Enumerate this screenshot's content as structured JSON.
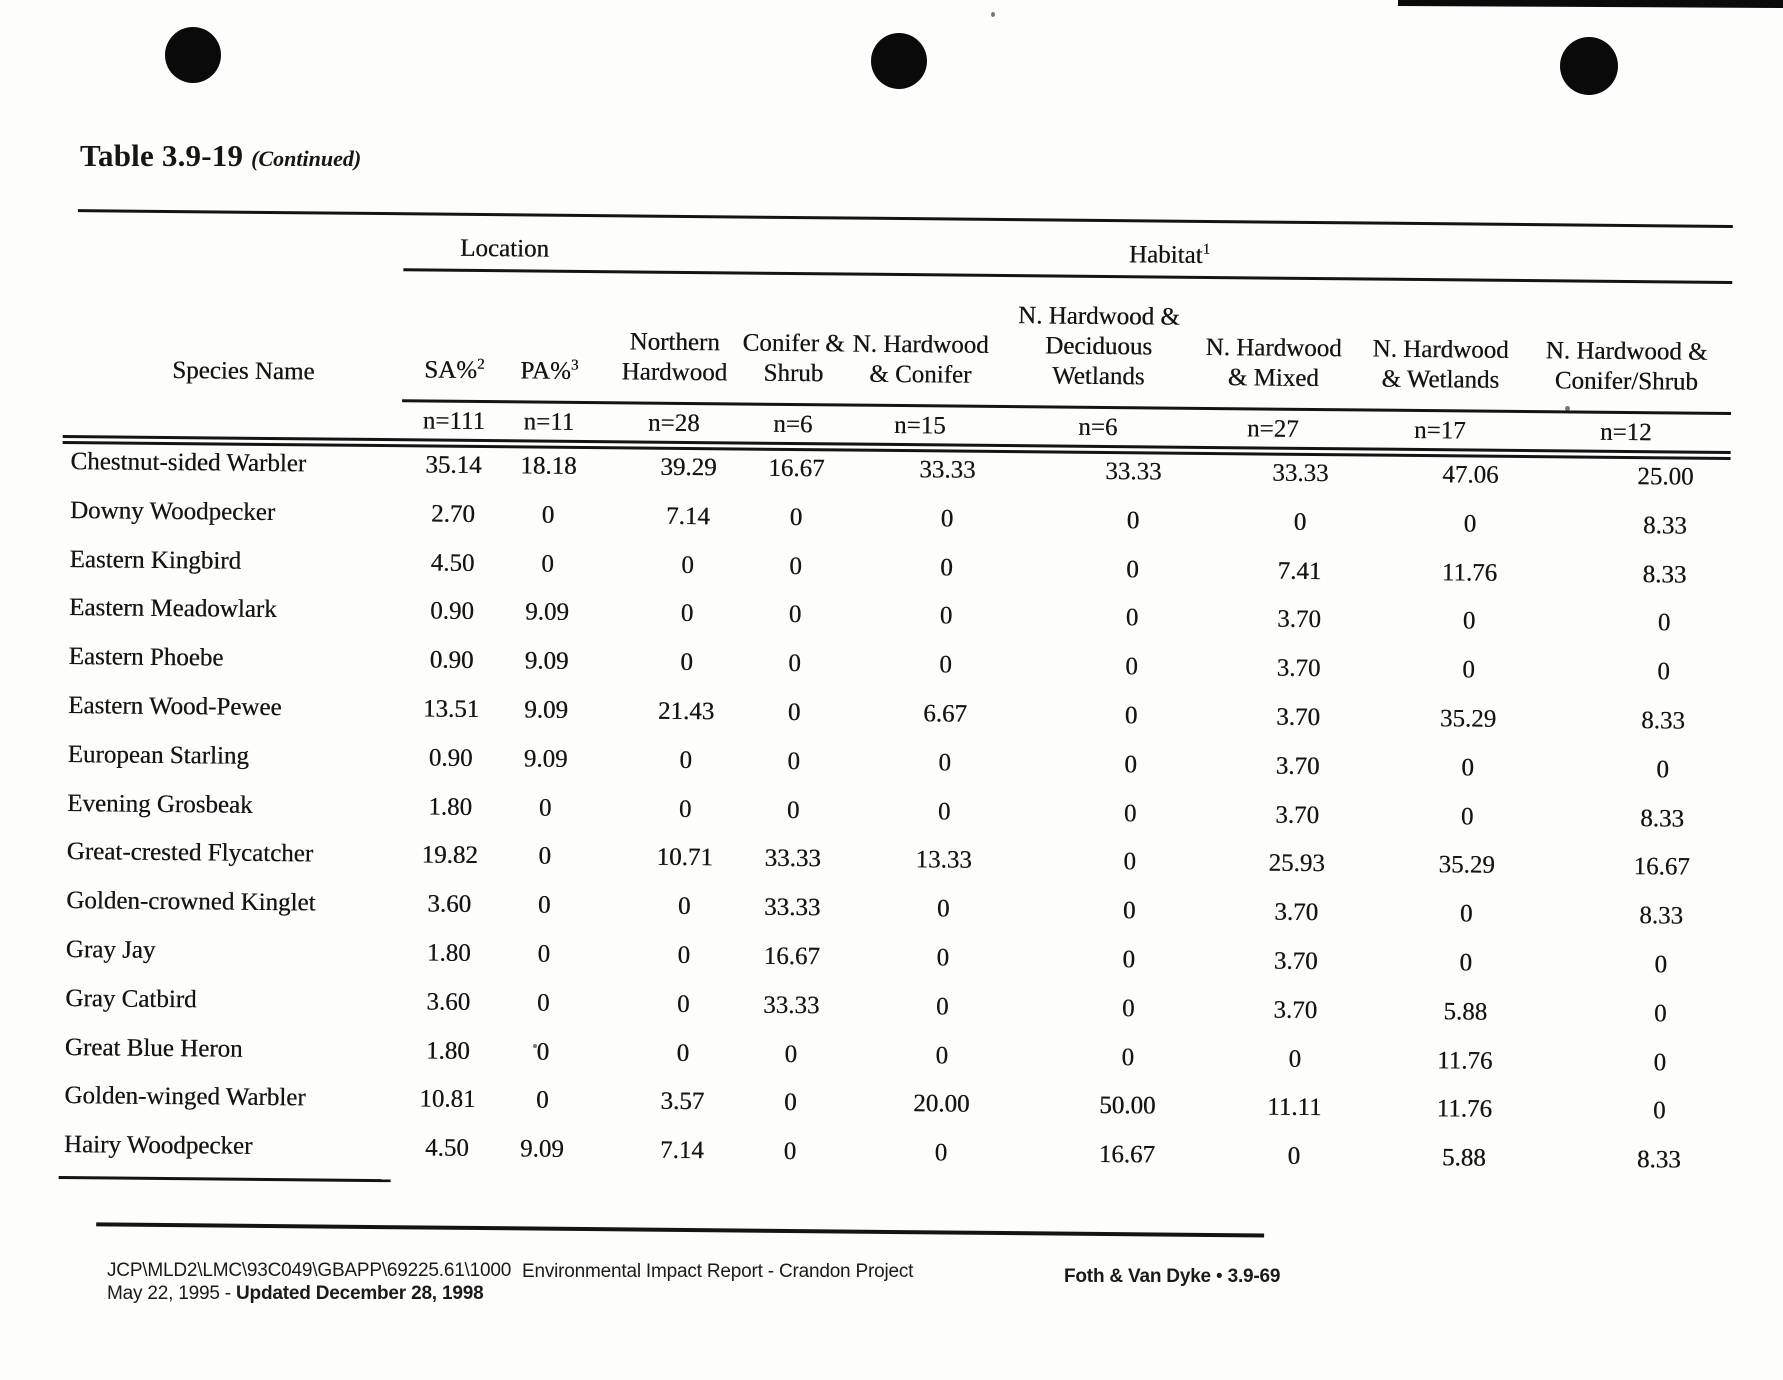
{
  "page": {
    "title": "Table 3.9-19",
    "title_note": "(Continued)"
  },
  "table": {
    "group_headers": [
      {
        "label": "Location",
        "sup": ""
      },
      {
        "label": "Habitat",
        "sup": "1"
      }
    ],
    "species_header": "Species Name",
    "columns": [
      {
        "lines": [
          "SA%"
        ],
        "sup": "2",
        "n": "n=111"
      },
      {
        "lines": [
          "PA%"
        ],
        "sup": "3",
        "n": "n=11"
      },
      {
        "lines": [
          "Northern",
          "Hardwood"
        ],
        "sup": "",
        "n": "n=28"
      },
      {
        "lines": [
          "Conifer &",
          "Shrub"
        ],
        "sup": "",
        "n": "n=6"
      },
      {
        "lines": [
          "N. Hardwood",
          "& Conifer"
        ],
        "sup": "",
        "n": "n=15"
      },
      {
        "lines": [
          "N. Hardwood &",
          "Deciduous",
          "Wetlands"
        ],
        "sup": "",
        "n": "n=6"
      },
      {
        "lines": [
          "N. Hardwood",
          "& Mixed"
        ],
        "sup": "",
        "n": "n=27"
      },
      {
        "lines": [
          "N. Hardwood",
          "& Wetlands"
        ],
        "sup": "",
        "n": "n=17"
      },
      {
        "lines": [
          "N. Hardwood &",
          "Conifer/Shrub"
        ],
        "sup": "",
        "n": "n=12"
      }
    ],
    "rows": [
      {
        "species": "Chestnut-sided Warbler",
        "values": [
          "35.14",
          "18.18",
          "39.29",
          "16.67",
          "33.33",
          "33.33",
          "33.33",
          "47.06",
          "25.00"
        ]
      },
      {
        "species": "Downy Woodpecker",
        "values": [
          "2.70",
          "0",
          "7.14",
          "0",
          "0",
          "0",
          "0",
          "0",
          "8.33"
        ]
      },
      {
        "species": "Eastern Kingbird",
        "values": [
          "4.50",
          "0",
          "0",
          "0",
          "0",
          "0",
          "7.41",
          "11.76",
          "8.33"
        ]
      },
      {
        "species": "Eastern Meadowlark",
        "values": [
          "0.90",
          "9.09",
          "0",
          "0",
          "0",
          "0",
          "3.70",
          "0",
          "0"
        ]
      },
      {
        "species": "Eastern Phoebe",
        "values": [
          "0.90",
          "9.09",
          "0",
          "0",
          "0",
          "0",
          "3.70",
          "0",
          "0"
        ]
      },
      {
        "species": "Eastern Wood-Pewee",
        "values": [
          "13.51",
          "9.09",
          "21.43",
          "0",
          "6.67",
          "0",
          "3.70",
          "35.29",
          "8.33"
        ]
      },
      {
        "species": "European Starling",
        "values": [
          "0.90",
          "9.09",
          "0",
          "0",
          "0",
          "0",
          "3.70",
          "0",
          "0"
        ]
      },
      {
        "species": "Evening Grosbeak",
        "values": [
          "1.80",
          "0",
          "0",
          "0",
          "0",
          "0",
          "3.70",
          "0",
          "8.33"
        ]
      },
      {
        "species": "Great-crested Flycatcher",
        "values": [
          "19.82",
          "0",
          "10.71",
          "33.33",
          "13.33",
          "0",
          "25.93",
          "35.29",
          "16.67"
        ]
      },
      {
        "species": "Golden-crowned Kinglet",
        "values": [
          "3.60",
          "0",
          "0",
          "33.33",
          "0",
          "0",
          "3.70",
          "0",
          "8.33"
        ]
      },
      {
        "species": "Gray Jay",
        "values": [
          "1.80",
          "0",
          "0",
          "16.67",
          "0",
          "0",
          "3.70",
          "0",
          "0"
        ]
      },
      {
        "species": "Gray Catbird",
        "values": [
          "3.60",
          "0",
          "0",
          "33.33",
          "0",
          "0",
          "3.70",
          "5.88",
          "0"
        ]
      },
      {
        "species": "Great Blue Heron",
        "values": [
          "1.80",
          "0",
          "0",
          "0",
          "0",
          "0",
          "0",
          "11.76",
          "0"
        ]
      },
      {
        "species": "Golden-winged Warbler",
        "values": [
          "10.81",
          "0",
          "3.57",
          "0",
          "20.00",
          "50.00",
          "11.11",
          "11.76",
          "0"
        ]
      },
      {
        "species": "Hairy Woodpecker",
        "values": [
          "4.50",
          "9.09",
          "7.14",
          "0",
          "0",
          "16.67",
          "0",
          "5.88",
          "8.33"
        ]
      }
    ]
  },
  "footer": {
    "doc_ref": "JCP\\MLD2\\LMC\\93C049\\GBAPP\\69225.61\\1000",
    "date_prefix": "May 22, 1995 - ",
    "date_updated": "Updated December 28, 1998",
    "center": "Environmental Impact Report - Crandon Project",
    "firm": "Foth & Van Dyke",
    "separator": "•",
    "page_number": "3.9-69"
  }
}
